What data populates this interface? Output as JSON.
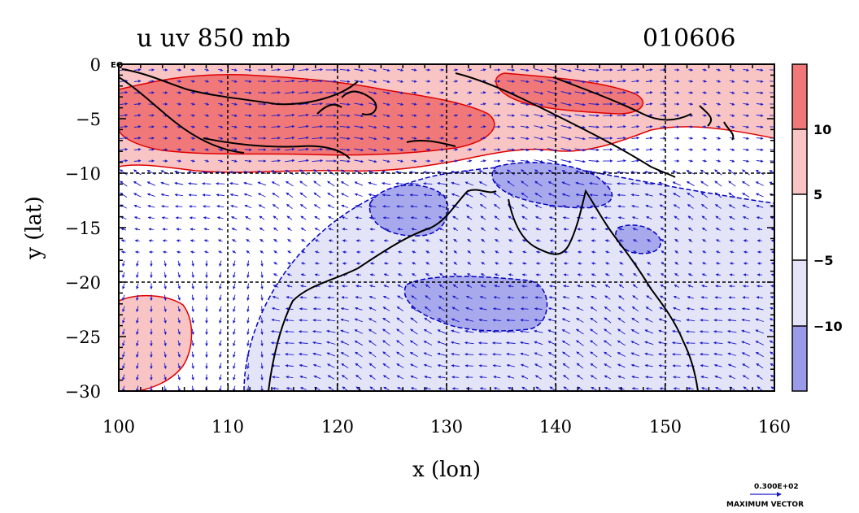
{
  "title_left": "u uv 850 mb",
  "title_right": "010606",
  "eq_label": "EQ",
  "x_axis": {
    "label": "x (lon)",
    "ticks": [
      "100",
      "110",
      "120",
      "130",
      "140",
      "150",
      "160"
    ],
    "range": [
      100,
      160
    ]
  },
  "y_axis": {
    "label": "y (lat)",
    "ticks": [
      "0",
      "−5",
      "−10",
      "−15",
      "−20",
      "−25",
      "−30"
    ],
    "range": [
      -30,
      0
    ]
  },
  "colorbar": {
    "labels": [
      "10",
      "5",
      "−5",
      "−10"
    ],
    "colors": [
      "#f07878",
      "#f8c4c4",
      "#ffffff",
      "#e4e4f8",
      "#9a9ae8"
    ]
  },
  "vector_key": {
    "value_label": "0.300E+02",
    "caption": "MAXIMUM VECTOR"
  },
  "colors": {
    "positive_contour": "#e00000",
    "negative_contour": "#0000c0",
    "vectors": "#1a1acc",
    "coast": "#000000"
  }
}
